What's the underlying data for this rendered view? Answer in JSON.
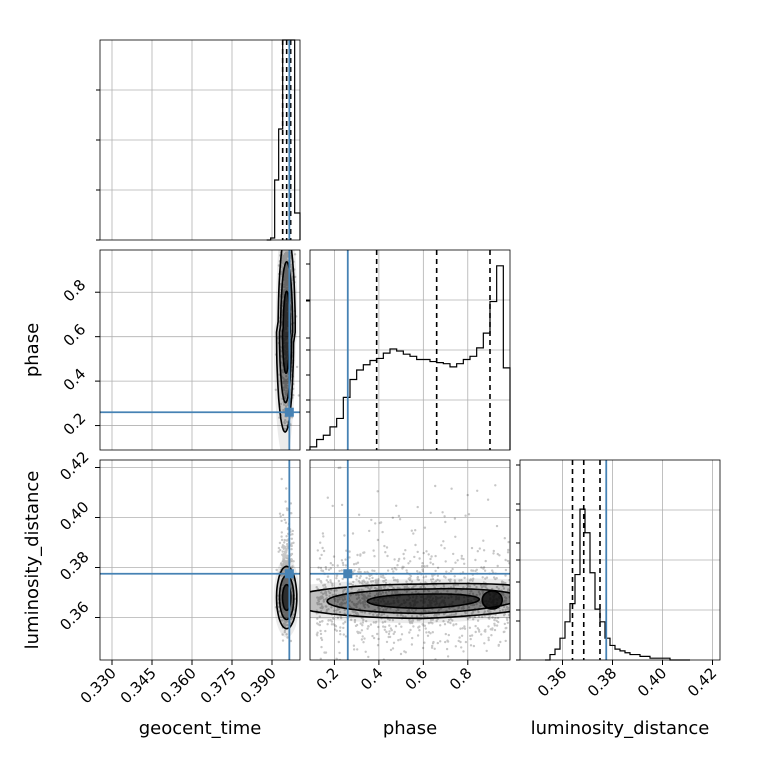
{
  "chart_data": {
    "type": "corner",
    "parameters": [
      "geocent_time",
      "phase",
      "luminosity_distance"
    ],
    "truth": {
      "geocent_time": 0.3965,
      "phase": 0.26,
      "luminosity_distance": 0.3775
    },
    "truth_color": "#4682b4",
    "grid": true,
    "axes": {
      "geocent_time": {
        "range": [
          0.3255,
          0.4005
        ],
        "ticks": [
          0.33,
          0.345,
          0.36,
          0.375,
          0.39
        ],
        "tick_labels": [
          "0.330",
          "0.345",
          "0.360",
          "0.375",
          "0.390"
        ],
        "label": "geocent_time"
      },
      "phase": {
        "range": [
          0.09,
          0.99
        ],
        "ticks": [
          0.2,
          0.4,
          0.6,
          0.8
        ],
        "tick_labels": [
          "0.2",
          "0.4",
          "0.6",
          "0.8"
        ],
        "label": "phase"
      },
      "luminosity_distance": {
        "range": [
          0.343,
          0.423
        ],
        "ticks": [
          0.36,
          0.38,
          0.4,
          0.42
        ],
        "tick_labels": [
          "0.36",
          "0.38",
          "0.40",
          "0.42"
        ],
        "label": "luminosity_distance"
      }
    },
    "histograms": [
      {
        "param": "geocent_time",
        "edges": [
          0.388,
          0.3895,
          0.391,
          0.3925,
          0.394,
          0.3955,
          0.397,
          0.3985,
          0.4005
        ],
        "counts": [
          0,
          2,
          60,
          111,
          200,
          200,
          200,
          27
        ],
        "ymax": 200,
        "quantiles": [
          0.394,
          0.3955,
          0.397
        ]
      },
      {
        "param": "phase",
        "edges": [
          0.09,
          0.12,
          0.15,
          0.18,
          0.21,
          0.24,
          0.27,
          0.3,
          0.33,
          0.36,
          0.39,
          0.42,
          0.45,
          0.48,
          0.51,
          0.54,
          0.57,
          0.6,
          0.63,
          0.66,
          0.69,
          0.72,
          0.75,
          0.78,
          0.81,
          0.84,
          0.87,
          0.9,
          0.93,
          0.96,
          0.99
        ],
        "counts": [
          3,
          10,
          14,
          22,
          30,
          50,
          67,
          76,
          81,
          85,
          87,
          92,
          96,
          94,
          91,
          89,
          86,
          86,
          84,
          83,
          82,
          79,
          82,
          86,
          89,
          97,
          111,
          141,
          175,
          78
        ],
        "ymax": 190,
        "quantiles": [
          0.39,
          0.66,
          0.9
        ]
      },
      {
        "param": "luminosity_distance",
        "edges": [
          0.353,
          0.355,
          0.357,
          0.359,
          0.361,
          0.363,
          0.365,
          0.367,
          0.369,
          0.371,
          0.373,
          0.375,
          0.377,
          0.379,
          0.381,
          0.383,
          0.385,
          0.387,
          0.389,
          0.391,
          0.393,
          0.395,
          0.397,
          0.399,
          0.401,
          0.403,
          0.405,
          0.407,
          0.409,
          0.411
        ],
        "counts": [
          0,
          3,
          6,
          12,
          21,
          31,
          47,
          83,
          70,
          48,
          28,
          21,
          12,
          8,
          6,
          5,
          4,
          3,
          3,
          2,
          2,
          1,
          1,
          1,
          1,
          0,
          0,
          0,
          0
        ],
        "ymax": 110,
        "quantiles": [
          0.364,
          0.3685,
          0.375
        ]
      }
    ],
    "scatter_panels": [
      {
        "x": "geocent_time",
        "y": "phase",
        "center": [
          0.3955,
          0.62
        ],
        "spread": [
          0.0012,
          0.22
        ],
        "contours": "kde"
      },
      {
        "x": "geocent_time",
        "y": "luminosity_distance",
        "center": [
          0.3955,
          0.369
        ],
        "spread": [
          0.0012,
          0.006
        ],
        "contours": "kde"
      },
      {
        "x": "phase",
        "y": "luminosity_distance",
        "center": [
          0.6,
          0.367
        ],
        "spread": [
          0.24,
          0.007
        ],
        "contours": "kde"
      }
    ]
  }
}
